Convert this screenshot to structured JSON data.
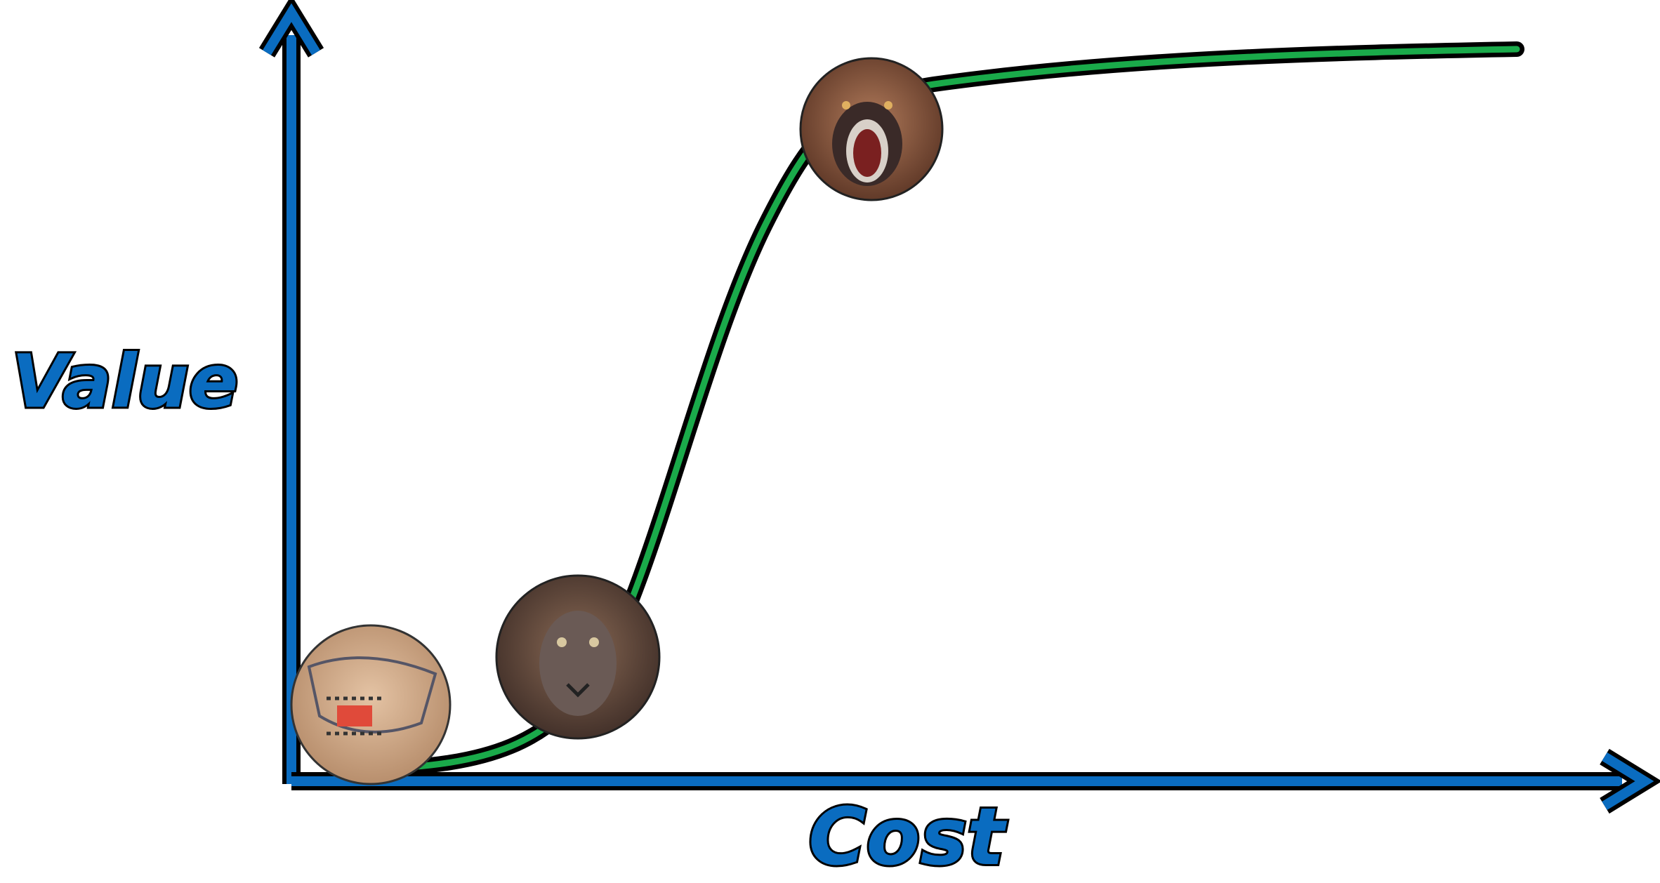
{
  "axes": {
    "y_label": "Value",
    "x_label": "Cost"
  }
}
